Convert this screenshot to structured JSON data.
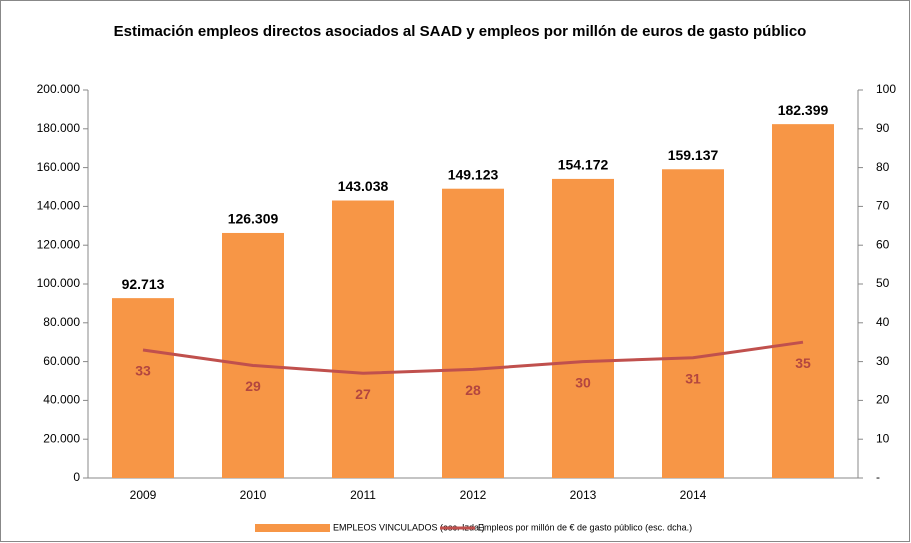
{
  "chart_data": {
    "type": "bar-line",
    "title": "Estimación empleos directos asociados al SAAD y empleos por millón de euros de gasto público",
    "categories": [
      "2009",
      "2010",
      "2011",
      "2012",
      "2013",
      "2014",
      null
    ],
    "series": [
      {
        "name": "EMPLEOS VINCULADOS (esc. Izda.)",
        "type": "bar",
        "color": "#f79646",
        "values": [
          92713,
          126309,
          143038,
          149123,
          154172,
          159137,
          182399
        ],
        "value_labels": [
          "92.713",
          "126.309",
          "143.038",
          "149.123",
          "154.172",
          "159.137",
          "182.399"
        ]
      },
      {
        "name": "Empleos por millón de € de gasto público (esc. dcha.)",
        "type": "line",
        "color": "#c0504d",
        "axis": "y2",
        "values": [
          33,
          29,
          27,
          28,
          30,
          31,
          35
        ]
      }
    ],
    "ylim": [
      0,
      200000
    ],
    "yticks": [
      0,
      {
        "value": 20000,
        "label": "20.000"
      },
      {
        "value": 40000,
        "label": "40.000"
      },
      {
        "value": 60000,
        "label": "60.000"
      },
      {
        "value": 80000,
        "label": "80.000"
      },
      {
        "value": 100000,
        "label": "100.000"
      },
      {
        "value": 120000,
        "label": "120.000"
      },
      {
        "value": 140000,
        "label": "140.000"
      },
      {
        "value": 160000,
        "label": "160.000"
      },
      {
        "value": 180000,
        "label": "180.000"
      },
      {
        "value": 200000,
        "label": "200.000"
      }
    ],
    "y2lim": [
      0,
      100
    ],
    "y2ticks": [
      {
        "value": 0,
        "label": "-"
      },
      10,
      20,
      30,
      40,
      50,
      60,
      70,
      80,
      90,
      100
    ],
    "legend": "bottom"
  }
}
